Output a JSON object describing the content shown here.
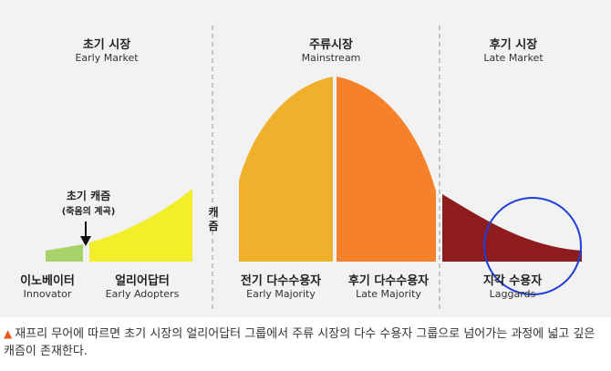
{
  "segments": [
    {
      "ko": "초기 시장",
      "en": "Early Market"
    },
    {
      "ko": "주류시장",
      "en": "Mainstream"
    },
    {
      "ko": "후기 시장",
      "en": "Late Market"
    }
  ],
  "groups": [
    {
      "ko": "이노베이터",
      "en": "Innovator",
      "color": "#a9d36a"
    },
    {
      "ko": "얼리어답터",
      "en": "Early Adopters",
      "color": "#f2ee2a"
    },
    {
      "ko": "전기 다수수용자",
      "en": "Early Majority",
      "color": "#efb02c"
    },
    {
      "ko": "후기 다수수용자",
      "en": "Late Majority",
      "color": "#f5822a"
    },
    {
      "ko": "지각 수용자",
      "en": "Laggards",
      "color": "#8e1b1d"
    }
  ],
  "chasm": {
    "title": "초기 캐즘",
    "subtitle": "(죽음의 계곡)",
    "vertical": [
      "캐",
      "즘"
    ]
  },
  "highlight_color": "#1f3fd8",
  "caption": {
    "marker": "▲",
    "text": "재프리 무어에 따르면 초기 시장의 얼리어답터 그룹에서 주류 시장의 다수 수용자 그룹으로 넘어가는 과정에 넓고 깊은 캐즘이 존재한다."
  }
}
